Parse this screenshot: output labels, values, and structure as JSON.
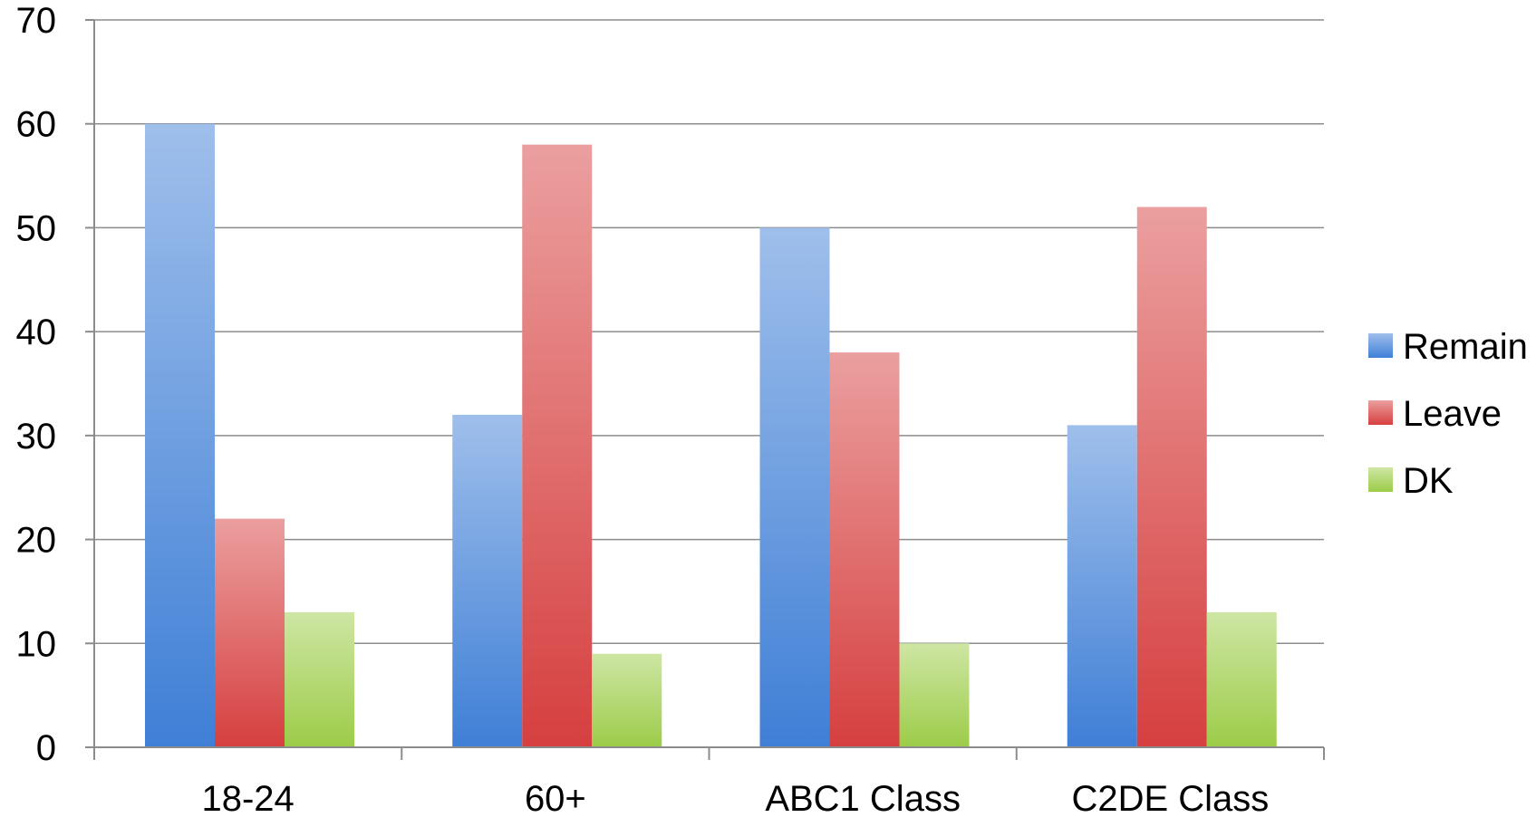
{
  "chart_data": {
    "type": "bar",
    "title": "",
    "xlabel": "",
    "ylabel": "",
    "categories": [
      "18-24",
      "60+",
      "ABC1 Class",
      "C2DE Class"
    ],
    "series": [
      {
        "name": "Remain",
        "values": [
          60,
          32,
          50,
          31
        ],
        "color": "#3f7fd6"
      },
      {
        "name": "Leave",
        "values": [
          22,
          58,
          38,
          52
        ],
        "color": "#d63f3f"
      },
      {
        "name": "DK",
        "values": [
          13,
          9,
          10,
          13
        ],
        "color": "#9ccc48"
      }
    ],
    "ylim": [
      0,
      70
    ],
    "yticks": [
      "0",
      "10",
      "20",
      "30",
      "40",
      "50",
      "60",
      "70"
    ],
    "grid": true,
    "legend_position": "right"
  }
}
